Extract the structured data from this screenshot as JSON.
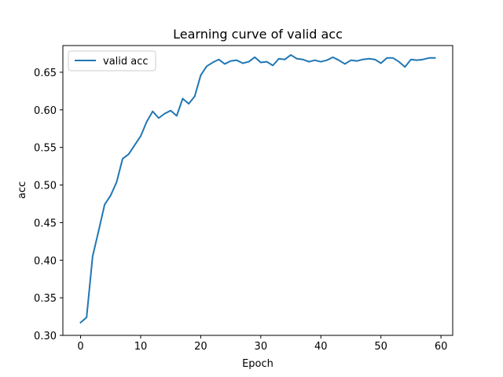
{
  "chart_data": {
    "type": "line",
    "title": "Learning curve of valid acc",
    "xlabel": "Epoch",
    "ylabel": "acc",
    "xlim": [
      -2.95,
      61.95
    ],
    "ylim": [
      0.3,
      0.6855
    ],
    "xticks": [
      0,
      10,
      20,
      30,
      40,
      50,
      60
    ],
    "yticks": [
      0.3,
      0.35,
      0.4,
      0.45,
      0.5,
      0.55,
      0.6,
      0.65
    ],
    "ytick_labels": [
      "0.30",
      "0.35",
      "0.40",
      "0.45",
      "0.50",
      "0.55",
      "0.60",
      "0.65"
    ],
    "grid": false,
    "legend_position": "top-left",
    "series": [
      {
        "name": "valid acc",
        "color": "#1f77b4",
        "x": [
          0,
          1,
          2,
          3,
          4,
          5,
          6,
          7,
          8,
          9,
          10,
          11,
          12,
          13,
          14,
          15,
          16,
          17,
          18,
          19,
          20,
          21,
          22,
          23,
          24,
          25,
          26,
          27,
          28,
          29,
          30,
          31,
          32,
          33,
          34,
          35,
          36,
          37,
          38,
          39,
          40,
          41,
          42,
          43,
          44,
          45,
          46,
          47,
          48,
          49,
          50,
          51,
          52,
          53,
          54,
          55,
          56,
          57,
          58,
          59
        ],
        "values": [
          0.317,
          0.324,
          0.405,
          0.439,
          0.474,
          0.486,
          0.504,
          0.535,
          0.541,
          0.553,
          0.565,
          0.584,
          0.598,
          0.589,
          0.595,
          0.599,
          0.592,
          0.615,
          0.608,
          0.618,
          0.646,
          0.658,
          0.663,
          0.667,
          0.661,
          0.665,
          0.666,
          0.662,
          0.664,
          0.67,
          0.663,
          0.664,
          0.659,
          0.668,
          0.667,
          0.673,
          0.668,
          0.667,
          0.664,
          0.666,
          0.664,
          0.666,
          0.67,
          0.666,
          0.661,
          0.666,
          0.665,
          0.667,
          0.668,
          0.667,
          0.662,
          0.669,
          0.669,
          0.664,
          0.657,
          0.667,
          0.666,
          0.667,
          0.669,
          0.669
        ]
      }
    ]
  }
}
